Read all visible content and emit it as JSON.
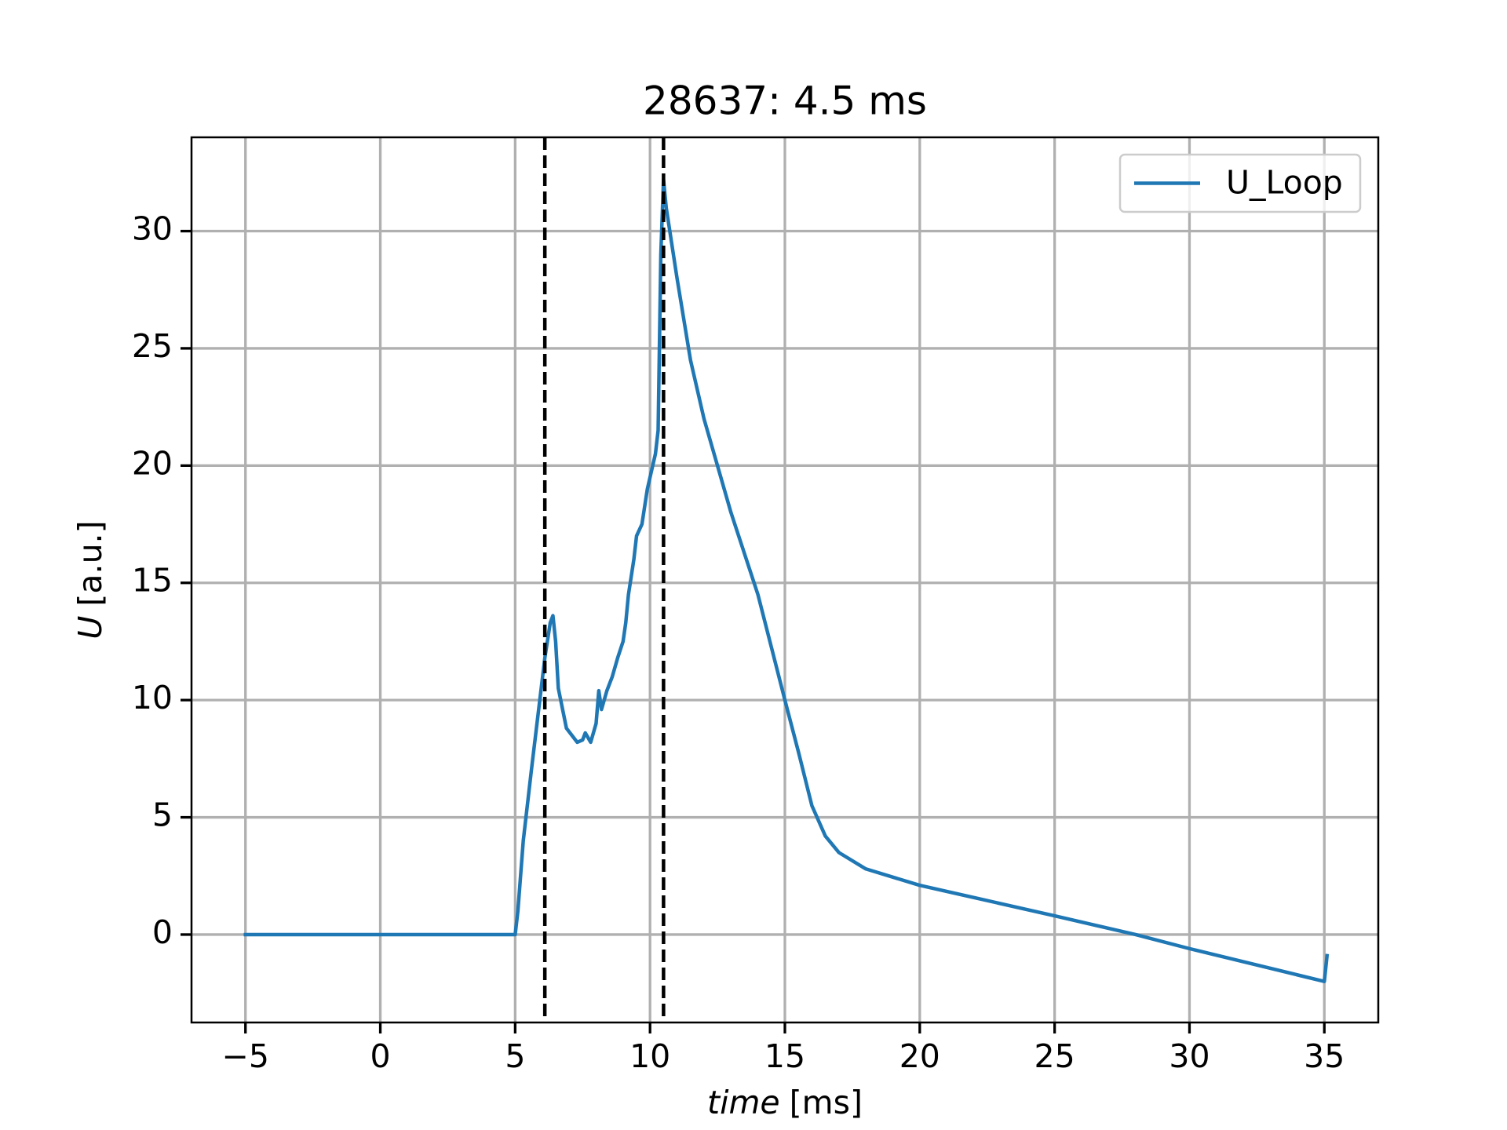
{
  "chart_data": {
    "type": "line",
    "title": "28637: 4.5 ms",
    "xlabel": [
      "time",
      "[ms]"
    ],
    "ylabel": [
      "U",
      "[a.u.]"
    ],
    "x": [
      -5,
      5,
      5.1,
      5.3,
      5.6,
      6.1,
      6.3,
      6.4,
      6.5,
      6.6,
      6.9,
      7.3,
      7.5,
      7.6,
      7.8,
      8.0,
      8.1,
      8.2,
      8.4,
      8.6,
      8.8,
      9.0,
      9.1,
      9.2,
      9.4,
      9.5,
      9.7,
      9.9,
      10.0,
      10.2,
      10.3,
      10.4,
      10.5,
      10.6,
      11.0,
      11.5,
      12.0,
      13.0,
      14.0,
      15.0,
      15.5,
      16.0,
      16.5,
      17.0,
      18.0,
      20.0,
      25.0,
      28.0,
      30.0,
      35.0,
      35.1
    ],
    "series": [
      {
        "name": "U_Loop",
        "color": "#1f77b4",
        "values": [
          0,
          0,
          1,
          4,
          7,
          11.8,
          13.3,
          13.6,
          12.5,
          10.5,
          8.8,
          8.2,
          8.3,
          8.6,
          8.2,
          9.0,
          10.4,
          9.6,
          10.4,
          11,
          11.8,
          12.5,
          13.3,
          14.5,
          16,
          17,
          17.5,
          19,
          19.5,
          20.5,
          21.5,
          29,
          32.2,
          31,
          28,
          24.5,
          22,
          18,
          14.5,
          10,
          7.8,
          5.5,
          4.2,
          3.5,
          2.8,
          2.1,
          0.8,
          0,
          -0.6,
          -2.0,
          -0.9
        ]
      }
    ],
    "vlines": [
      6.1,
      10.5
    ],
    "xlim": [
      -7,
      37
    ],
    "ylim": [
      -3.75,
      34
    ],
    "xticks": [
      {
        "value": -5,
        "label": "−5"
      },
      0,
      5,
      10,
      15,
      20,
      25,
      30,
      35
    ],
    "yticks": [
      0,
      5,
      10,
      15,
      20,
      25,
      30
    ],
    "grid": true,
    "legend": "upper right"
  }
}
